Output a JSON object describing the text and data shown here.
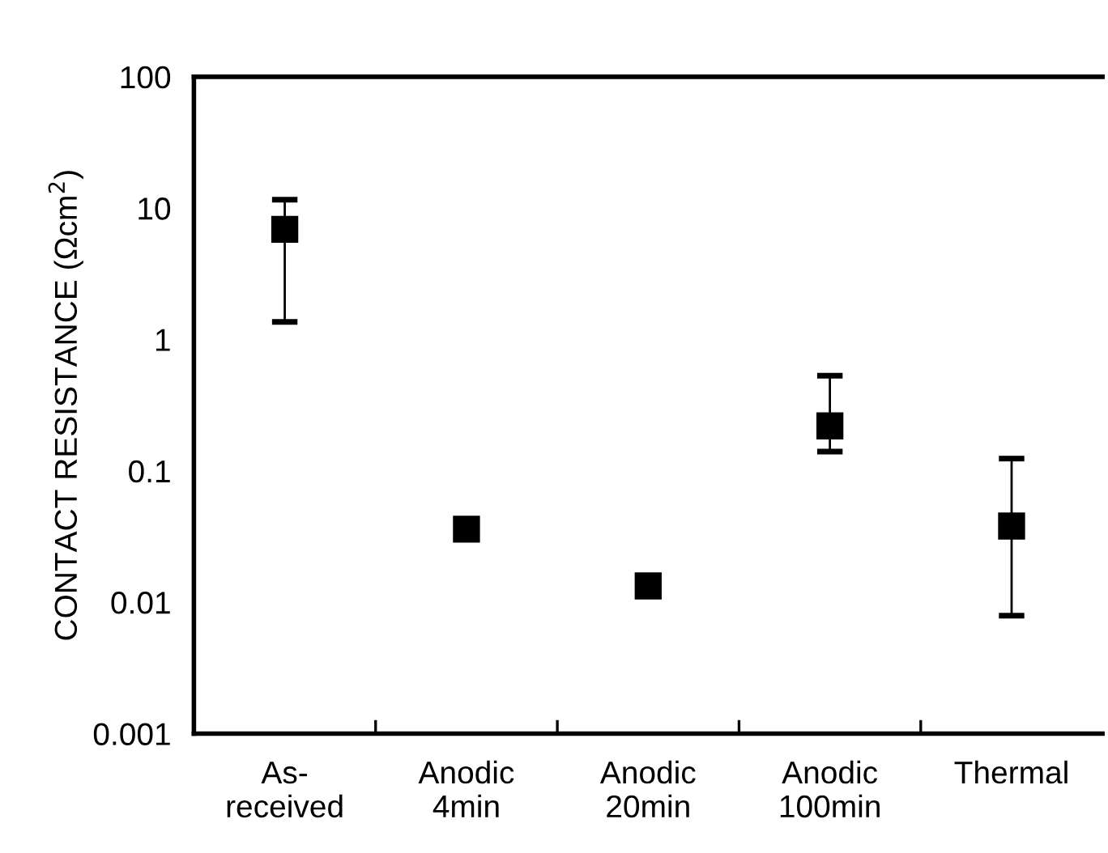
{
  "chart_data": {
    "type": "scatter",
    "ylabel": "CONTACT RESISTANCE (Ωcm$^{2}$)",
    "categories": [
      "As-\nreceived",
      "Anodic\n4min",
      "Anodic\n20min",
      "Anodic\n100min",
      "Thermal"
    ],
    "values": [
      6.9,
      0.036,
      0.0133,
      0.22,
      0.038
    ],
    "errors": [
      [
        1.36,
        11.6
      ],
      null,
      null,
      [
        0.14,
        0.53
      ],
      [
        0.0079,
        0.124
      ]
    ],
    "color": "#000000",
    "marker": "square",
    "log": "y",
    "ylim": [
      0.001,
      100
    ],
    "yticks": [
      0.001,
      0.01,
      0.1,
      1,
      10,
      100
    ],
    "grid": false,
    "legend": false
  }
}
